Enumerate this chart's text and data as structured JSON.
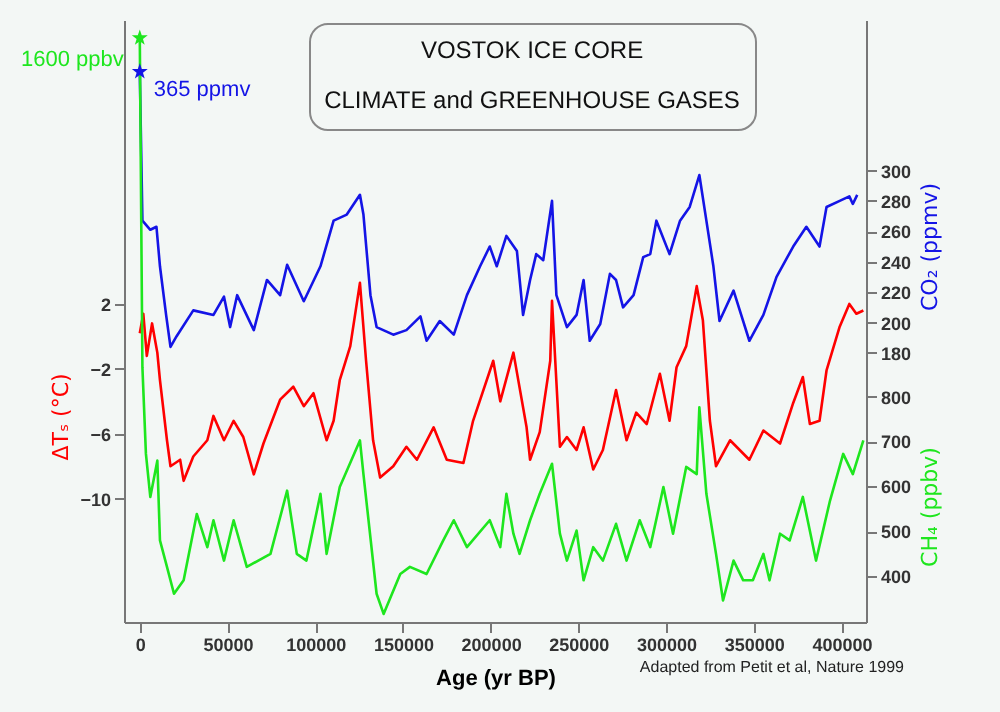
{
  "chart_data": {
    "type": "line",
    "title": "VOSTOK ICE CORE\nCLIMATE and GREENHOUSE GASES",
    "xlabel": "Age (yr BP)",
    "ylabel": "ΔTₛ (°C)",
    "y2label": "CO₂ (ppmv)",
    "y3label": "CH₄ (ppbv)",
    "annotations": [
      "1600 ppbv",
      "365 ppmv",
      "Adapted from Petit et al, Nature 1999"
    ],
    "xlim": [
      -9000,
      414000
    ],
    "xticks": [
      0,
      50000,
      100000,
      150000,
      200000,
      250000,
      300000,
      350000,
      400000
    ],
    "ylim": [
      -17.6,
      19.5
    ],
    "yticks": [
      -10,
      -6,
      -2,
      2
    ],
    "y2lim": [
      3,
      399
    ],
    "y2ticks": [
      180,
      200,
      220,
      240,
      260,
      280,
      300
    ],
    "y3lim": [
      297,
      1640
    ],
    "y3ticks": [
      400,
      500,
      600,
      700,
      800
    ],
    "series": [
      {
        "axis": "y",
        "color": "#ff0000",
        "x": [
          0,
          2000,
          4000,
          7000,
          10000,
          11500,
          15500,
          17500,
          23000,
          25000,
          30500,
          38500,
          42000,
          48000,
          53500,
          59000,
          65000,
          70500,
          80000,
          87500,
          93500,
          99000,
          106500,
          110500,
          114000,
          120000,
          125500,
          129000,
          133000,
          137000,
          144500,
          152000,
          158000,
          167500,
          175000,
          184500,
          190000,
          201500,
          205500,
          213000,
          220500,
          222500,
          228000,
          234000,
          235000,
          239500,
          243500,
          249000,
          253000,
          258500,
          264000,
          271500,
          277500,
          283000,
          289000,
          296500,
          302000,
          306000,
          311500,
          317500,
          321000,
          325000,
          328500,
          336500,
          347500,
          355500,
          365000,
          372500,
          378000,
          382000,
          387500,
          391500,
          399000,
          404500,
          408500,
          412500
        ],
        "values": [
          0.2,
          1.4,
          -1.2,
          0.8,
          -1,
          -2.7,
          -6.4,
          -8,
          -7.6,
          -8.9,
          -7.4,
          -6.4,
          -4.9,
          -6.4,
          -5.2,
          -6.2,
          -8.5,
          -6.6,
          -3.9,
          -3.1,
          -4.3,
          -3.5,
          -6.4,
          -5.2,
          -2.7,
          -0.6,
          3.3,
          -1.5,
          -6.4,
          -8.7,
          -8,
          -6.8,
          -7.6,
          -5.6,
          -7.6,
          -7.8,
          -5.2,
          -1.5,
          -4,
          -1,
          -5.6,
          -7.6,
          -5.9,
          -1.5,
          2.2,
          -6.8,
          -6.2,
          -7,
          -5.6,
          -8.2,
          -7,
          -3.3,
          -6.4,
          -4.7,
          -5.4,
          -2.3,
          -5.2,
          -1.9,
          -0.6,
          3.1,
          1,
          -5.2,
          -8,
          -6.4,
          -7.6,
          -5.8,
          -6.6,
          -4.1,
          -2.5,
          -5.4,
          -5.2,
          -2.1,
          0.6,
          2,
          1.4,
          1.6
        ]
      },
      {
        "axis": "y2",
        "color": "#1414e6",
        "x": [
          0,
          1500,
          6000,
          9500,
          11500,
          15000,
          17500,
          21000,
          30500,
          42000,
          48000,
          51500,
          55500,
          65000,
          72500,
          80000,
          84000,
          93500,
          103000,
          110500,
          118000,
          125500,
          127500,
          131500,
          135000,
          144500,
          152000,
          160000,
          163500,
          171000,
          179000,
          186500,
          194000,
          199500,
          203500,
          209000,
          215000,
          218500,
          222500,
          226000,
          230000,
          235000,
          237500,
          243500,
          249000,
          253000,
          256500,
          262500,
          268000,
          271500,
          275500,
          281500,
          287000,
          291000,
          294500,
          302000,
          308000,
          313500,
          319000,
          323000,
          327000,
          330500,
          338500,
          347500,
          355500,
          363000,
          372500,
          380000,
          387500,
          391500,
          399000,
          404500,
          406500,
          409000
        ],
        "values": [
          365,
          267,
          261,
          263,
          237,
          205,
          184,
          191,
          208,
          205,
          217,
          197,
          218,
          195,
          228,
          218,
          238,
          214,
          237,
          267,
          271,
          284,
          271,
          218,
          197,
          192,
          195,
          204,
          188,
          201,
          192,
          218,
          237,
          250,
          237,
          257,
          247,
          205,
          228,
          245,
          241,
          280,
          218,
          197,
          205,
          228,
          188,
          199,
          232,
          228,
          210,
          218,
          243,
          245,
          267,
          245,
          267,
          276,
          297,
          267,
          237,
          201,
          221,
          188,
          205,
          230,
          250,
          263,
          250,
          276,
          280,
          283,
          278,
          284
        ]
      },
      {
        "axis": "y3",
        "color": "#1ee61e",
        "x": [
          0,
          1500,
          3500,
          6000,
          10000,
          11500,
          15500,
          19500,
          25000,
          32500,
          38500,
          42000,
          48000,
          53500,
          61000,
          74500,
          84000,
          89500,
          95000,
          103000,
          106500,
          114000,
          125500,
          127500,
          135000,
          139000,
          148500,
          154000,
          163500,
          173000,
          179000,
          186500,
          199500,
          205500,
          209000,
          213000,
          216500,
          222500,
          228000,
          235000,
          239500,
          243500,
          249000,
          253000,
          258500,
          264000,
          271500,
          277500,
          285000,
          291000,
          298500,
          304000,
          311500,
          317500,
          319000,
          323000,
          328500,
          332500,
          338500,
          344000,
          349500,
          355500,
          359000,
          365000,
          370500,
          378000,
          385500,
          393500,
          401000,
          406500,
          412500
        ],
        "values": [
          1600,
          865,
          672,
          576,
          657,
          479,
          420,
          360,
          390,
          538,
          464,
          524,
          434,
          524,
          420,
          449,
          590,
          449,
          434,
          583,
          449,
          598,
          702,
          627,
          360,
          315,
          404,
          420,
          404,
          479,
          524,
          464,
          524,
          464,
          583,
          494,
          449,
          524,
          583,
          650,
          494,
          434,
          501,
          390,
          464,
          434,
          516,
          434,
          524,
          464,
          598,
          494,
          643,
          627,
          776,
          583,
          449,
          345,
          434,
          390,
          390,
          449,
          390,
          494,
          479,
          576,
          434,
          568,
          672,
          627,
          702
        ]
      },
      {
        "type": "scatter",
        "axis": "y3",
        "color": "#1ee61e",
        "marker": "star",
        "x": [
          0
        ],
        "values": [
          1600
        ]
      },
      {
        "type": "scatter",
        "axis": "y2",
        "color": "#1414e6",
        "marker": "star",
        "x": [
          0
        ],
        "values": [
          365
        ]
      }
    ]
  }
}
